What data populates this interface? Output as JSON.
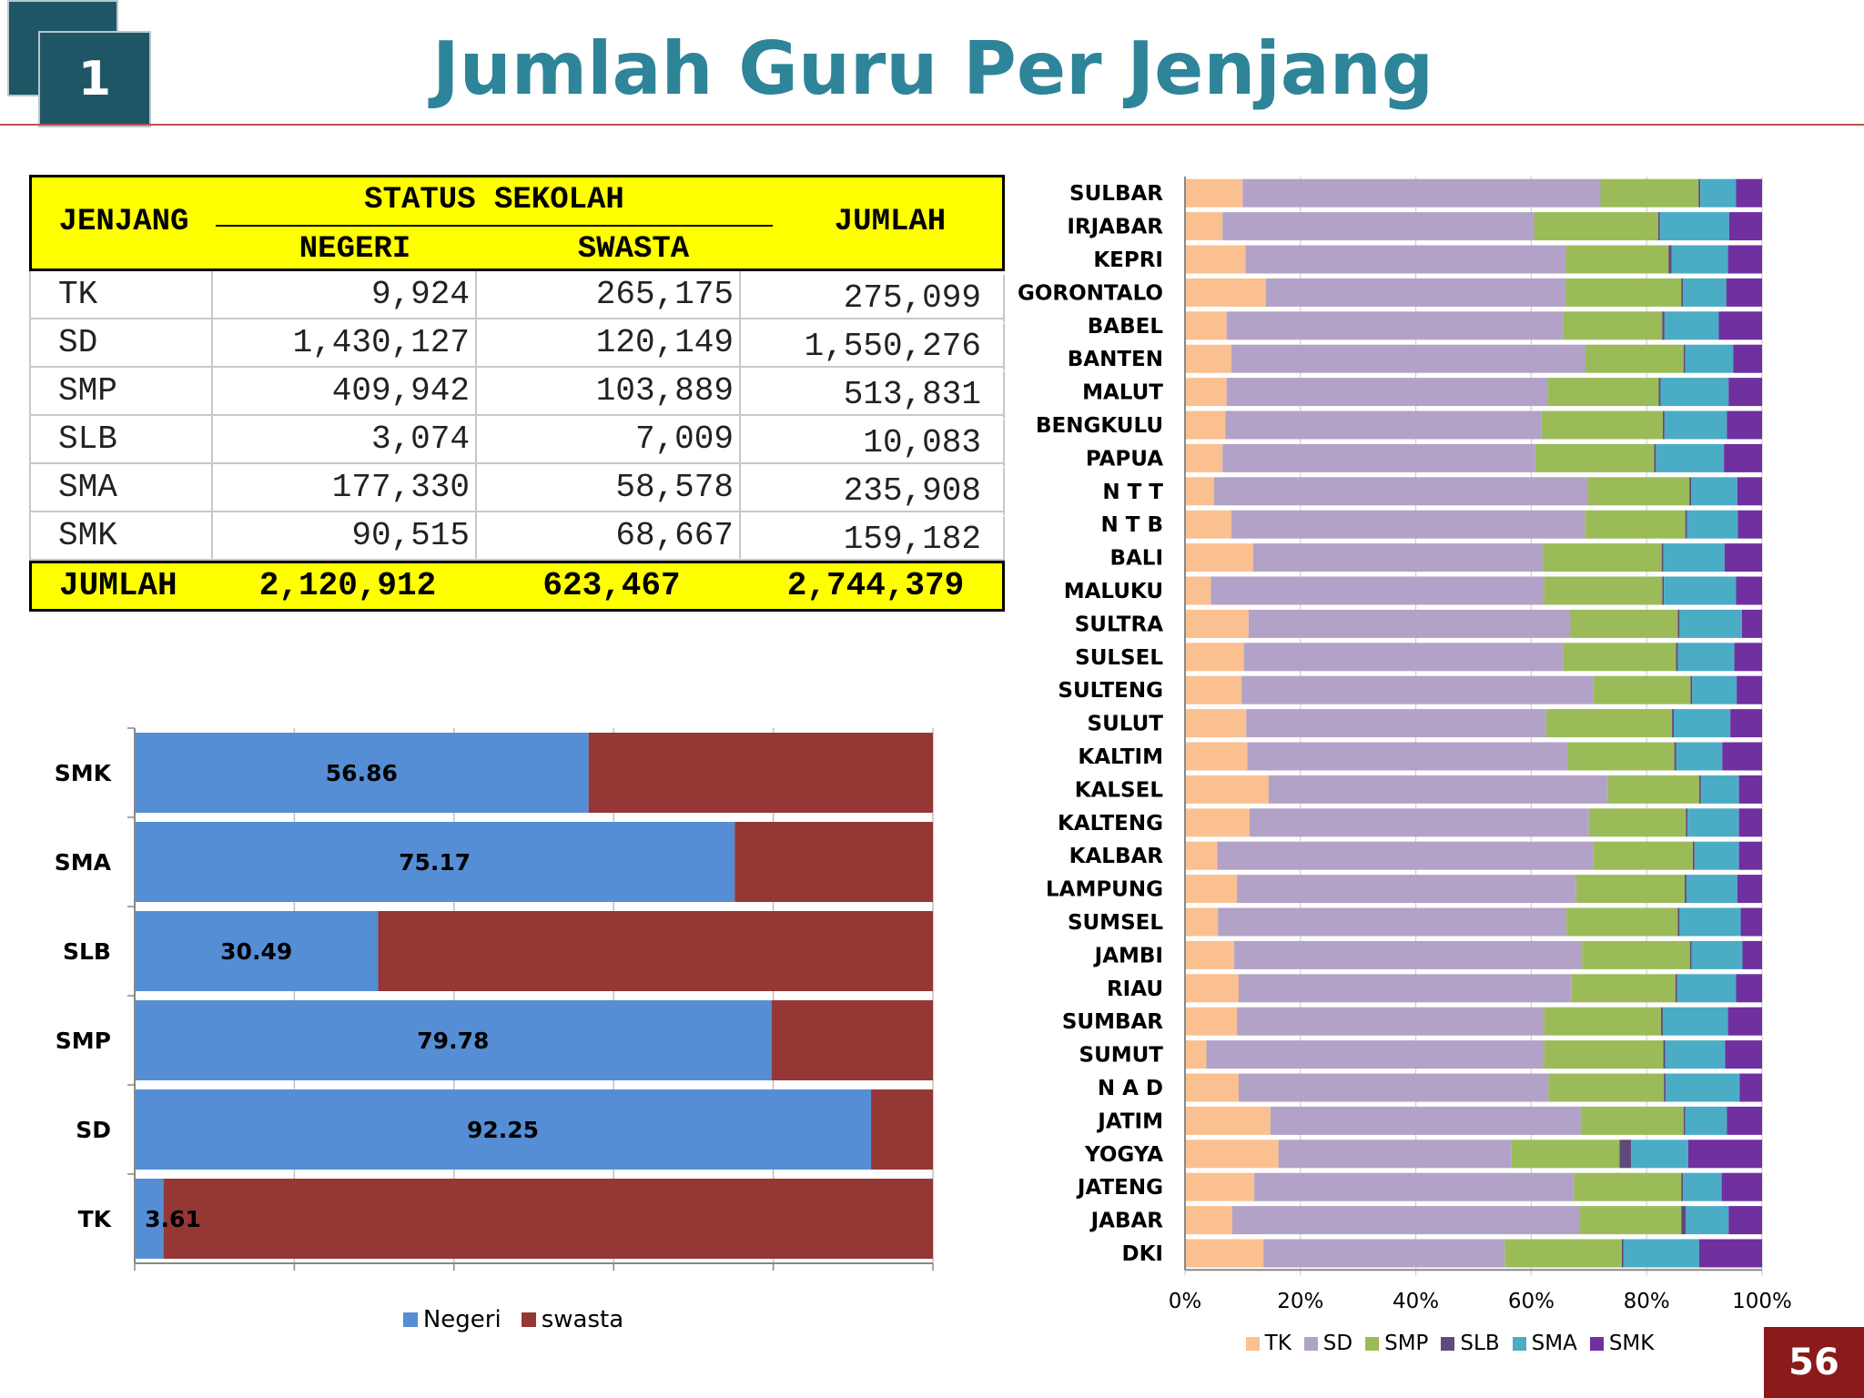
{
  "slide": {
    "badge": "1",
    "title": "Jumlah Guru Per Jenjang",
    "page_number": "56"
  },
  "table": {
    "col_jenjang": "JENJANG",
    "group_header": "STATUS SEKOLAH",
    "col_negeri": "NEGERI",
    "col_swasta": "SWASTA",
    "col_jumlah": "JUMLAH",
    "rows": [
      {
        "jenjang": "TK",
        "negeri": "9,924",
        "swasta": "265,175",
        "jumlah": "275,099"
      },
      {
        "jenjang": "SD",
        "negeri": "1,430,127",
        "swasta": "120,149",
        "jumlah": "1,550,276"
      },
      {
        "jenjang": "SMP",
        "negeri": "409,942",
        "swasta": "103,889",
        "jumlah": "513,831"
      },
      {
        "jenjang": "SLB",
        "negeri": "3,074",
        "swasta": "7,009",
        "jumlah": "10,083"
      },
      {
        "jenjang": "SMA",
        "negeri": "177,330",
        "swasta": "58,578",
        "jumlah": "235,908"
      },
      {
        "jenjang": "SMK",
        "negeri": "90,515",
        "swasta": "68,667",
        "jumlah": "159,182"
      }
    ],
    "total": {
      "label": "JUMLAH",
      "negeri": "2,120,912",
      "swasta": "623,467",
      "jumlah": "2,744,379"
    }
  },
  "chart_data": [
    {
      "type": "bar",
      "orientation": "horizontal",
      "stacked": "100%",
      "categories": [
        "SMK",
        "SMA",
        "SLB",
        "SMP",
        "SD",
        "TK"
      ],
      "series": [
        {
          "name": "Negeri",
          "color": "#558ed5",
          "values": [
            56.86,
            75.17,
            30.49,
            79.78,
            92.25,
            3.61
          ]
        },
        {
          "name": "swasta",
          "color": "#953735",
          "values": [
            43.14,
            24.83,
            69.51,
            20.22,
            7.75,
            96.39
          ]
        }
      ],
      "data_labels": [
        "56.86",
        "75.17",
        "30.49",
        "79.78",
        "92.25",
        "3.61"
      ],
      "legend": "bottom",
      "grid": true
    },
    {
      "type": "bar",
      "orientation": "horizontal",
      "stacked": "100%",
      "categories": [
        "SULBAR",
        "IRJABAR",
        "KEPRI",
        "GORONTALO",
        "BABEL",
        "BANTEN",
        "MALUT",
        "BENGKULU",
        "PAPUA",
        "N T T",
        "N T B",
        "BALI",
        "MALUKU",
        "SULTRA",
        "SULSEL",
        "SULTENG",
        "SULUT",
        "KALTIM",
        "KALSEL",
        "KALTENG",
        "KALBAR",
        "LAMPUNG",
        "SUMSEL",
        "JAMBI",
        "RIAU",
        "SUMBAR",
        "SUMUT",
        "N A D",
        "JATIM",
        "YOGYA",
        "JATENG",
        "JABAR",
        "DKI"
      ],
      "series": [
        {
          "name": "TK",
          "color": "#fac090",
          "values": [
            10,
            6.5,
            10.5,
            14,
            7.2,
            8,
            7.2,
            7,
            6.5,
            5,
            8,
            11.8,
            4.5,
            11,
            10.2,
            9.8,
            10.6,
            10.8,
            14.5,
            11.2,
            5.6,
            9,
            5.7,
            8.5,
            9.3,
            9,
            3.7,
            9.3,
            14.8,
            16.2,
            12,
            8.2,
            13.6
          ]
        },
        {
          "name": "SD",
          "color": "#b3a2c7",
          "values": [
            62,
            54,
            55.5,
            52,
            58.3,
            61.4,
            55.6,
            54.8,
            54.2,
            64.8,
            61.3,
            50.2,
            57.7,
            55.8,
            55.4,
            61,
            52,
            55.5,
            58.8,
            58.8,
            65.2,
            58.8,
            60.4,
            60.3,
            57.7,
            53.2,
            58.5,
            53.7,
            53.8,
            40.4,
            55.4,
            60.1,
            41.8
          ]
        },
        {
          "name": "SMP",
          "color": "#9bbb59",
          "values": [
            17,
            21.5,
            17.8,
            20,
            17.2,
            17,
            19.3,
            21,
            20.6,
            17.6,
            17.4,
            20.6,
            20.5,
            18.6,
            19.5,
            16.8,
            21.8,
            18.5,
            15.8,
            16.8,
            17.2,
            18.8,
            19.3,
            18.7,
            18,
            20.3,
            20.7,
            20,
            17.8,
            18.7,
            18.6,
            17.7,
            20.3
          ]
        },
        {
          "name": "SLB",
          "color": "#604a7b",
          "values": [
            0.3,
            0.3,
            0.5,
            0.3,
            0.4,
            0.3,
            0.3,
            0.3,
            0.3,
            0.3,
            0.3,
            0.3,
            0.3,
            0.3,
            0.3,
            0.3,
            0.3,
            0.3,
            0.3,
            0.3,
            0.3,
            0.3,
            0.3,
            0.3,
            0.3,
            0.3,
            0.3,
            0.3,
            0.3,
            2,
            0.3,
            0.8,
            0.3
          ]
        },
        {
          "name": "SMA",
          "color": "#4bacc6",
          "values": [
            6.2,
            12,
            9.8,
            7.5,
            9.4,
            8.3,
            11.8,
            10.8,
            11.8,
            8,
            8.8,
            10.6,
            12.5,
            10.8,
            9.8,
            7.7,
            9.8,
            8,
            6.6,
            8.9,
            7.7,
            8.8,
            10.6,
            8.8,
            10.2,
            11.3,
            10.4,
            12.8,
            7.2,
            9.9,
            6.7,
            7.4,
            13.1
          ]
        },
        {
          "name": "SMK",
          "color": "#7030a0",
          "values": [
            4.5,
            5.7,
            5.9,
            6.2,
            7.5,
            5,
            5.8,
            6.1,
            6.6,
            4.3,
            4.2,
            6.5,
            4.5,
            3.5,
            4.8,
            4.4,
            5.5,
            6.9,
            4,
            4,
            4,
            4.3,
            3.7,
            3.4,
            4.5,
            5.9,
            6.4,
            3.9,
            6.1,
            12.8,
            7,
            5.8,
            10.9
          ]
        }
      ],
      "x_ticks": [
        "0%",
        "20%",
        "40%",
        "60%",
        "80%",
        "100%"
      ],
      "xlim": [
        0,
        100
      ],
      "legend": "bottom"
    }
  ]
}
